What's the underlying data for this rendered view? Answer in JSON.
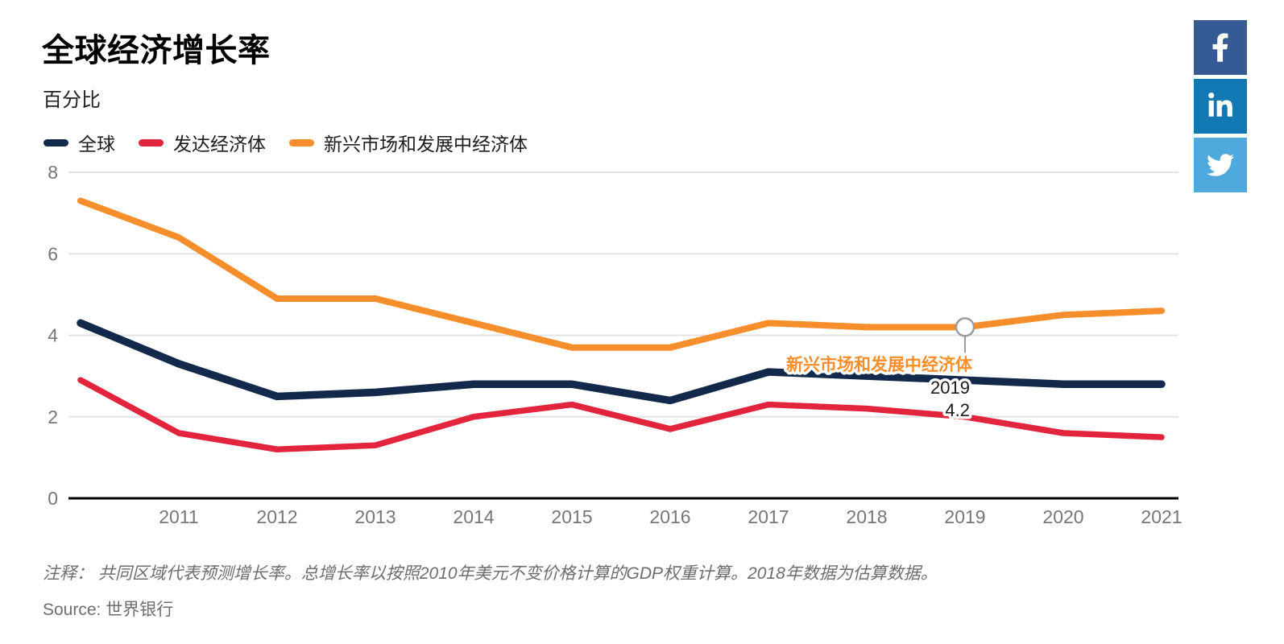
{
  "header": {
    "title": "全球经济增长率",
    "subtitle": "百分比"
  },
  "share": {
    "buttons": [
      {
        "name": "facebook",
        "color": "#365A93"
      },
      {
        "name": "linkedin",
        "color": "#1178B3"
      },
      {
        "name": "twitter",
        "color": "#4FA9DC"
      }
    ]
  },
  "chart_data": {
    "type": "line",
    "x": [
      2010,
      2011,
      2012,
      2013,
      2014,
      2015,
      2016,
      2017,
      2018,
      2019,
      2020,
      2021
    ],
    "x_ticks": [
      2011,
      2012,
      2013,
      2014,
      2015,
      2016,
      2017,
      2018,
      2019,
      2020,
      2021
    ],
    "series": [
      {
        "name": "全球",
        "color": "#13294C",
        "values": [
          4.3,
          3.3,
          2.5,
          2.6,
          2.8,
          2.8,
          2.4,
          3.1,
          3.0,
          2.9,
          2.8,
          2.8
        ]
      },
      {
        "name": "发达经济体",
        "color": "#E2243C",
        "values": [
          2.9,
          1.6,
          1.2,
          1.3,
          2.0,
          2.3,
          1.7,
          2.3,
          2.2,
          2.0,
          1.6,
          1.5
        ]
      },
      {
        "name": "新兴市场和发展中经济体",
        "color": "#F78E2C",
        "values": [
          7.3,
          6.4,
          4.9,
          4.9,
          4.3,
          3.7,
          3.7,
          4.3,
          4.2,
          4.2,
          4.5,
          4.6
        ]
      }
    ],
    "title": "全球经济增长率",
    "ylabel": "百分比",
    "xlabel": "",
    "ylim": [
      0,
      8
    ],
    "yticks": [
      0,
      2,
      4,
      6,
      8
    ],
    "grid": "horizontal",
    "legend_position": "top-left",
    "annotation": {
      "series": "新兴市场和发展中经济体",
      "year": 2019,
      "value": 4.2,
      "year_label": "2019",
      "value_label": "4.2"
    }
  },
  "footer": {
    "note": "注释： 共同区域代表预测增长率。总增长率以按照2010年美元不变价格计算的GDP权重计算。2018年数据为估算数据。",
    "source": "Source: 世界银行"
  }
}
